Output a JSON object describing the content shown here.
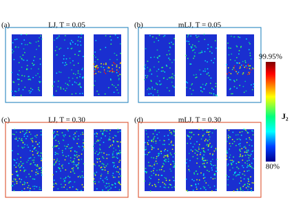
{
  "panels": [
    {
      "label": "(a)",
      "title": "LJ, T = 0.05"
    },
    {
      "label": "(b)",
      "title": "mLJ, T = 0.05"
    },
    {
      "label": "(c)",
      "title": "LJ, T = 0.30"
    },
    {
      "label": "(d)",
      "title": "mLJ, T = 0.30"
    }
  ],
  "colorbar": {
    "top": "99.95%",
    "bottom": "80%",
    "label": "J₂"
  }
}
